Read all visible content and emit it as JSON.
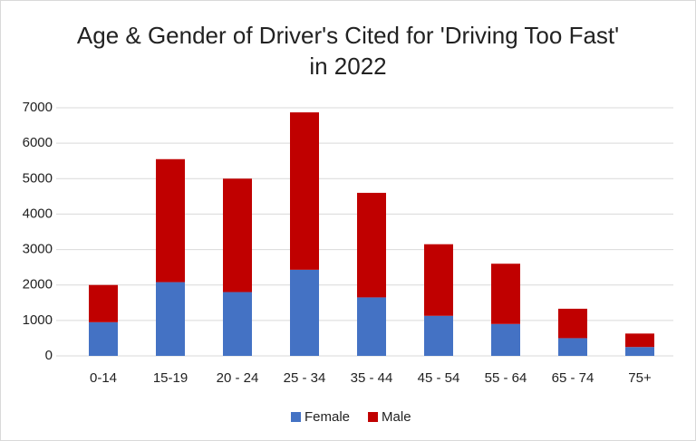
{
  "chart_data": {
    "type": "stacked_bar",
    "title": "Age & Gender of Driver's Cited for 'Driving Too Fast' in 2022",
    "categories": [
      "0-14",
      "15-19",
      "20 - 24",
      "25 - 34",
      "35 - 44",
      "45 - 54",
      "55 - 64",
      "65 - 74",
      "75+"
    ],
    "series": [
      {
        "name": "Female",
        "color": "#4472c4",
        "values": [
          950,
          2080,
          1800,
          2430,
          1650,
          1130,
          900,
          500,
          250
        ]
      },
      {
        "name": "Male",
        "color": "#c00000",
        "values": [
          1050,
          3470,
          3200,
          4440,
          2950,
          2020,
          1700,
          830,
          380
        ]
      }
    ],
    "ylim": [
      0,
      7000
    ],
    "yticks": [
      0,
      1000,
      2000,
      3000,
      4000,
      5000,
      6000,
      7000
    ],
    "grid": true,
    "legend": "bottom"
  }
}
